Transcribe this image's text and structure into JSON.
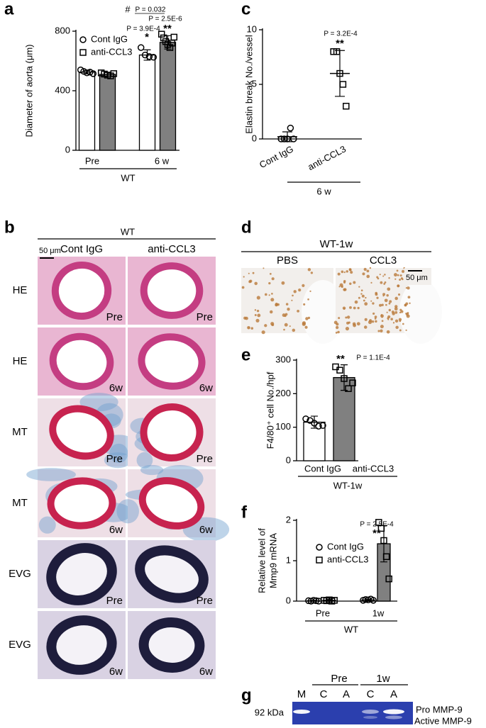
{
  "panel_labels": [
    "a",
    "b",
    "c",
    "d",
    "e",
    "f",
    "g"
  ],
  "chart_data": [
    {
      "type": "bar",
      "ylabel": [
        "Diameter of aorta (μm)"
      ],
      "ylim": [
        0,
        800
      ],
      "yticks": [
        0,
        400,
        800
      ],
      "categories": [
        "Pre",
        "6 w"
      ],
      "group_label": "WT",
      "series": [
        {
          "name": "Cont IgG",
          "color": "#ffffff",
          "markers": [
            "circle",
            "circle"
          ],
          "values": [
            525,
            640
          ],
          "errors": [
            12,
            35
          ],
          "points": [
            [
              540,
              530,
              520,
              525,
              515
            ],
            [
              690,
              640,
              630,
              625
            ]
          ]
        },
        {
          "name": "anti-CCL3",
          "color": "#808080",
          "markers": [
            "square",
            "square"
          ],
          "values": [
            510,
            725
          ],
          "errors": [
            12,
            45
          ],
          "points": [
            [
              520,
              512,
              505,
              500,
              515
            ],
            [
              780,
              755,
              730,
              710,
              690,
              720,
              760
            ]
          ]
        }
      ],
      "annotations": [
        "P = 3.9E-4",
        "*",
        "P = 2.5E-6",
        "**",
        "#",
        "P = 0.032"
      ]
    },
    {
      "type": "dot",
      "ylabel": [
        "Elastin break No./vessel"
      ],
      "ylim": [
        0,
        10
      ],
      "yticks": [
        0,
        5,
        10
      ],
      "categories": [
        "Cont IgG",
        "anti-CCL3"
      ],
      "group_label": "6 w",
      "values": [
        0.2,
        6
      ],
      "errors": [
        0.45,
        2.1
      ],
      "markers": [
        "circle",
        "square"
      ],
      "points": [
        [
          0,
          0,
          0,
          1,
          0
        ],
        [
          8,
          8,
          6,
          5,
          3
        ]
      ],
      "annotations": [
        "P = 3.2E-4",
        "**"
      ]
    },
    {
      "type": "bar",
      "ylabel": [
        "F4/80⁺ cell No./hpf"
      ],
      "ylim": [
        0,
        300
      ],
      "yticks": [
        0,
        100,
        200,
        300
      ],
      "categories": [
        "Cont IgG",
        "anti-CCL3"
      ],
      "group_label": "WT-1w",
      "series": [
        {
          "colors": [
            "#ffffff",
            "#808080"
          ],
          "markers": [
            "circle",
            "square"
          ],
          "values": [
            115,
            248
          ],
          "errors": [
            18,
            38
          ],
          "points": [
            [
              125,
              120,
              112,
              103,
              105
            ],
            [
              280,
              270,
              245,
              215,
              232
            ]
          ]
        }
      ],
      "annotations": [
        "**",
        "P = 1.1E-4"
      ]
    },
    {
      "type": "bar",
      "ylabel": [
        "Relative level of",
        "Mmp9 mRNA"
      ],
      "ylim": [
        0,
        2
      ],
      "yticks": [
        0,
        1,
        2
      ],
      "categories": [
        "Pre",
        "1w"
      ],
      "group_label": "WT",
      "series": [
        {
          "name": "Cont IgG",
          "color": "#ffffff",
          "markers": [
            "circle",
            "circle"
          ],
          "values": [
            0.01,
            0.03
          ],
          "errors": [
            0.01,
            0.02
          ],
          "points": [
            [
              0.01,
              0.0,
              0.02,
              0.01,
              0.0
            ],
            [
              0.02,
              0.04,
              0.03,
              0.05,
              0.02
            ]
          ]
        },
        {
          "name": "anti-CCL3",
          "color": "#808080",
          "markers": [
            "square",
            "square"
          ],
          "values": [
            0.02,
            1.42
          ],
          "errors": [
            0.02,
            0.45
          ],
          "points": [
            [
              0.02,
              0.01,
              0.03,
              0.0,
              0.02
            ],
            [
              1.95,
              1.8,
              1.5,
              1.1,
              0.55
            ]
          ]
        }
      ],
      "annotations": [
        "P = 2.5E-4",
        "**"
      ]
    }
  ],
  "panel_b": {
    "title": "WT",
    "columns": [
      "Cont IgG",
      "anti-CCL3"
    ],
    "scale_bar": "50 μm",
    "rows": [
      {
        "label": "HE",
        "tag": "Pre"
      },
      {
        "label": "HE",
        "tag": "6w"
      },
      {
        "label": "MT",
        "tag": "Pre"
      },
      {
        "label": "MT",
        "tag": "6w"
      },
      {
        "label": "EVG",
        "tag": "Pre"
      },
      {
        "label": "EVG",
        "tag": "6w"
      }
    ]
  },
  "panel_d": {
    "title": "WT-1w",
    "columns": [
      "PBS",
      "CCL3"
    ],
    "scale_bar": "50 μm"
  },
  "panel_g": {
    "groups": [
      "Pre",
      "1w"
    ],
    "lanes": [
      "M",
      "C",
      "A",
      "C",
      "A"
    ],
    "marker": "92 kDa",
    "bands": [
      "Pro MMP-9",
      "Active MMP-9"
    ]
  }
}
